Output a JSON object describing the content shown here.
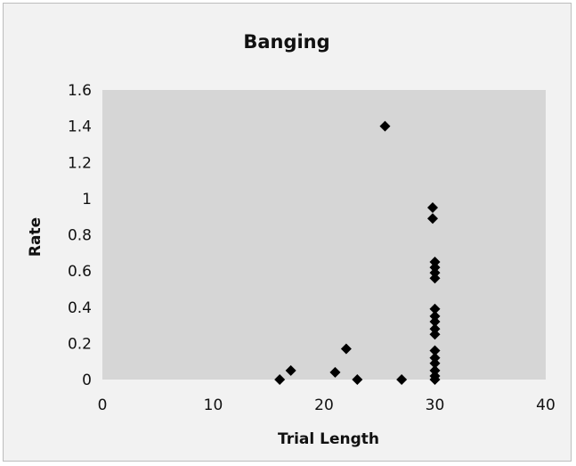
{
  "chart_data": {
    "type": "scatter",
    "title": "Banging",
    "xlabel": "Trial Length",
    "ylabel": "Rate",
    "xlim": [
      0,
      40
    ],
    "ylim": [
      0,
      1.6
    ],
    "x_ticks": [
      "0",
      "10",
      "20",
      "30",
      "40"
    ],
    "y_ticks": [
      "0",
      "0.2",
      "0.4",
      "0.6",
      "0.8",
      "1",
      "1.2",
      "1.4",
      "1.6"
    ],
    "grid": false,
    "legend": "none",
    "marker": "diamond",
    "colors": {
      "plot_area": "#d6d6d6",
      "frame": "#f2f2f2",
      "marker": "#000000"
    },
    "points": [
      {
        "x": 16,
        "y": 0.0
      },
      {
        "x": 17,
        "y": 0.05
      },
      {
        "x": 21,
        "y": 0.04
      },
      {
        "x": 22,
        "y": 0.17
      },
      {
        "x": 23,
        "y": 0.0
      },
      {
        "x": 25.5,
        "y": 1.4
      },
      {
        "x": 27,
        "y": 0.0
      },
      {
        "x": 29.8,
        "y": 0.95
      },
      {
        "x": 29.8,
        "y": 0.89
      },
      {
        "x": 30,
        "y": 0.65
      },
      {
        "x": 30,
        "y": 0.62
      },
      {
        "x": 30,
        "y": 0.59
      },
      {
        "x": 30,
        "y": 0.56
      },
      {
        "x": 30,
        "y": 0.39
      },
      {
        "x": 30,
        "y": 0.35
      },
      {
        "x": 30,
        "y": 0.32
      },
      {
        "x": 30,
        "y": 0.28
      },
      {
        "x": 30,
        "y": 0.25
      },
      {
        "x": 30,
        "y": 0.16
      },
      {
        "x": 30,
        "y": 0.12
      },
      {
        "x": 30,
        "y": 0.09
      },
      {
        "x": 30,
        "y": 0.05
      },
      {
        "x": 30,
        "y": 0.02
      },
      {
        "x": 30,
        "y": 0.0
      }
    ]
  }
}
